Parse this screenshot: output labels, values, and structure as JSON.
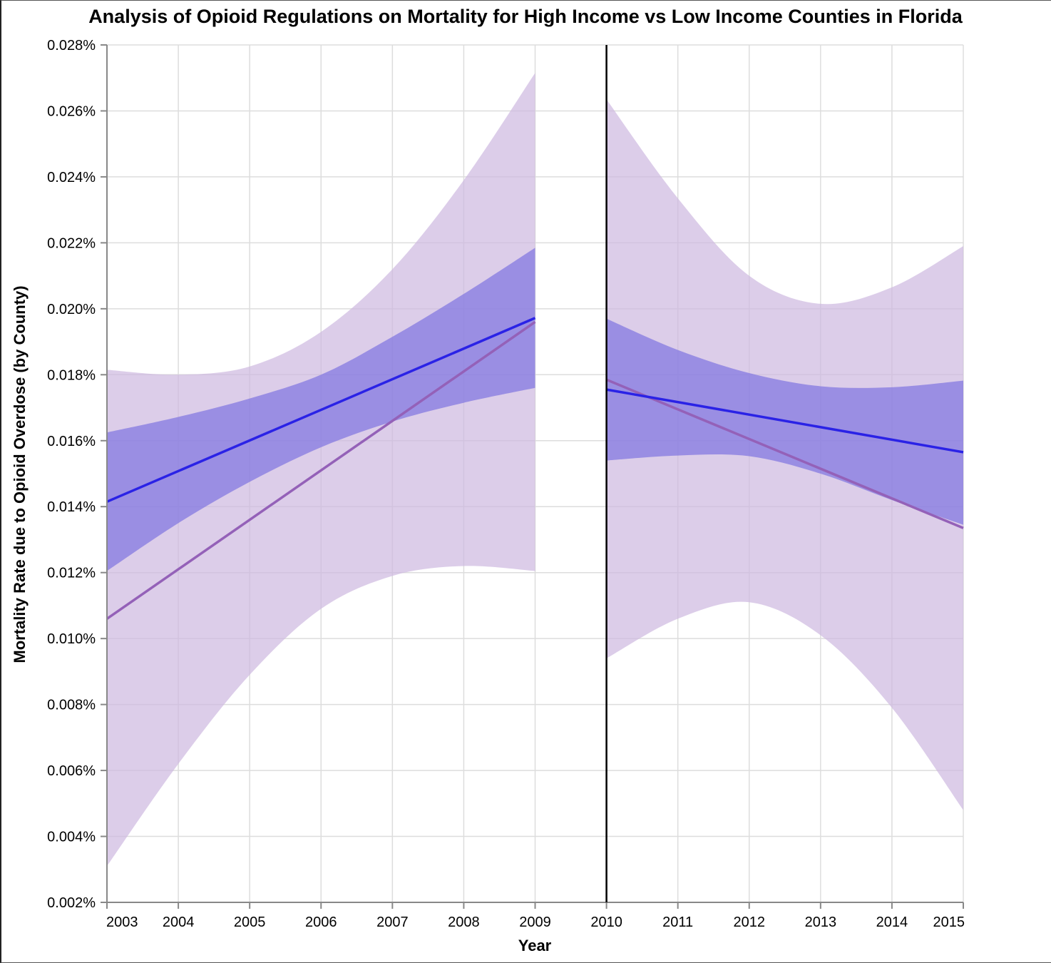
{
  "chart_data": {
    "type": "line",
    "title": "Analysis of Opioid Regulations on Mortality for High Income vs Low Income Counties in Florida",
    "xlabel": "Year",
    "ylabel": "Mortality Rate due to Opioid Overdose (by County)",
    "xlim": [
      2003,
      2015
    ],
    "ylim": [
      0.002,
      0.028
    ],
    "y_unit": "%",
    "x_ticks": [
      2003,
      2004,
      2005,
      2006,
      2007,
      2008,
      2009,
      2010,
      2011,
      2012,
      2013,
      2014,
      2015
    ],
    "y_ticks": [
      "0.002%",
      "0.004%",
      "0.006%",
      "0.008%",
      "0.010%",
      "0.012%",
      "0.014%",
      "0.016%",
      "0.018%",
      "0.020%",
      "0.022%",
      "0.024%",
      "0.026%",
      "0.028%"
    ],
    "y_tick_values": [
      0.002,
      0.004,
      0.006,
      0.008,
      0.01,
      0.012,
      0.014,
      0.016,
      0.018,
      0.02,
      0.022,
      0.024,
      0.026,
      0.028
    ],
    "grid": true,
    "regulation_line_year": 2010,
    "colors": {
      "blue_line": "#2a22e6",
      "blue_band": "#7d74e0",
      "purple_line": "#9461b8",
      "purple_band": "#cdb8e0",
      "grid": "#dddddd",
      "axis": "#888888",
      "regulation_line": "#000000"
    },
    "series": [
      {
        "color_key": "blue",
        "segments": [
          {
            "x": [
              2003,
              2009
            ],
            "y": [
              0.01415,
              0.01972
            ],
            "band_x": [
              2003,
              2004,
              2005,
              2006,
              2007,
              2008,
              2009
            ],
            "band_upper": [
              0.01625,
              0.01672,
              0.01728,
              0.018,
              0.01915,
              0.02045,
              0.02185
            ],
            "band_lower": [
              0.01205,
              0.0135,
              0.01475,
              0.0158,
              0.01658,
              0.01715,
              0.0176
            ]
          },
          {
            "x": [
              2010,
              2015
            ],
            "y": [
              0.01755,
              0.01565
            ],
            "band_x": [
              2010,
              2011,
              2012,
              2013,
              2014,
              2015
            ],
            "band_upper": [
              0.0197,
              0.01875,
              0.01805,
              0.01765,
              0.01762,
              0.01782
            ],
            "band_lower": [
              0.0154,
              0.01555,
              0.01553,
              0.015,
              0.0142,
              0.01345
            ]
          }
        ]
      },
      {
        "color_key": "purple",
        "segments": [
          {
            "x": [
              2003,
              2009
            ],
            "y": [
              0.0106,
              0.0196
            ],
            "band_x": [
              2003,
              2004,
              2005,
              2006,
              2007,
              2008,
              2009
            ],
            "band_upper": [
              0.01815,
              0.018,
              0.01825,
              0.0193,
              0.0212,
              0.0239,
              0.02715
            ],
            "band_lower": [
              0.0031,
              0.0062,
              0.0089,
              0.0109,
              0.0119,
              0.0122,
              0.01205
            ]
          },
          {
            "x": [
              2010,
              2015
            ],
            "y": [
              0.01785,
              0.01335
            ],
            "band_x": [
              2010,
              2011,
              2012,
              2013,
              2014,
              2015
            ],
            "band_upper": [
              0.02635,
              0.02335,
              0.021,
              0.02015,
              0.02065,
              0.0219
            ],
            "band_lower": [
              0.0094,
              0.0106,
              0.0111,
              0.0101,
              0.0079,
              0.0048
            ]
          }
        ]
      }
    ]
  }
}
